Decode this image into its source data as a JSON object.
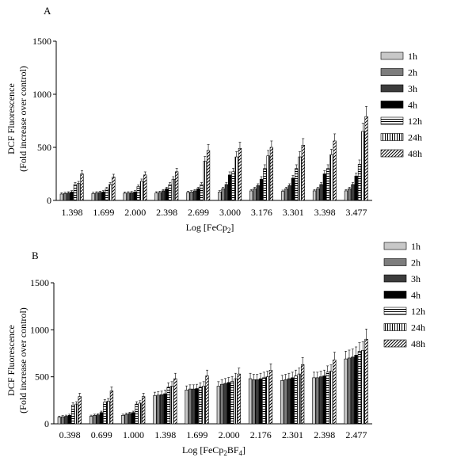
{
  "chart_data": [
    {
      "type": "bar",
      "panel_label": "A",
      "ylabel": "DCF Fluorescence",
      "ylabel2": "(Fold increase over control)",
      "xlabel_main": "Log [FeCp",
      "xlabel_sub": "2",
      "xlabel_end": "]",
      "ylim": [
        0,
        1500
      ],
      "yticks": [
        "0",
        "500",
        "1000",
        "1500"
      ],
      "categories": [
        "1.398",
        "1.699",
        "2.000",
        "2.398",
        "2.699",
        "3.000",
        "3.176",
        "3.301",
        "3.398",
        "3.477"
      ],
      "series": [
        {
          "name": "1h",
          "values": [
            60,
            65,
            68,
            70,
            75,
            80,
            90,
            85,
            90,
            90
          ]
        },
        {
          "name": "2h",
          "values": [
            65,
            70,
            70,
            75,
            80,
            110,
            110,
            110,
            110,
            110
          ]
        },
        {
          "name": "3h",
          "values": [
            70,
            75,
            72,
            90,
            90,
            150,
            140,
            140,
            150,
            150
          ]
        },
        {
          "name": "4h",
          "values": [
            80,
            80,
            80,
            110,
            110,
            240,
            200,
            210,
            250,
            230
          ]
        },
        {
          "name": "12h",
          "values": [
            150,
            110,
            130,
            150,
            150,
            270,
            300,
            300,
            300,
            340
          ]
        },
        {
          "name": "24h",
          "values": [
            160,
            150,
            180,
            200,
            370,
            410,
            420,
            410,
            430,
            650
          ]
        },
        {
          "name": "48h",
          "values": [
            250,
            220,
            240,
            270,
            470,
            490,
            500,
            520,
            560,
            790
          ]
        }
      ]
    },
    {
      "type": "bar",
      "panel_label": "B",
      "ylabel": "DCF Fluorescence",
      "ylabel2": "(Fold increase over control)",
      "xlabel_main": "Log [FeCp",
      "xlabel_sub": "2",
      "xlabel_mid": "BF",
      "xlabel_sub2": "4",
      "xlabel_end": "]",
      "ylim": [
        0,
        1500
      ],
      "yticks": [
        "0",
        "500",
        "1000",
        "1500"
      ],
      "categories": [
        "0.398",
        "0.699",
        "1.000",
        "1.398",
        "1.699",
        "2.000",
        "2.176",
        "2.301",
        "2.398",
        "2.477"
      ],
      "series": [
        {
          "name": "1h",
          "values": [
            70,
            80,
            90,
            300,
            360,
            400,
            480,
            460,
            490,
            690
          ]
        },
        {
          "name": "2h",
          "values": [
            75,
            90,
            100,
            305,
            370,
            420,
            470,
            470,
            490,
            700
          ]
        },
        {
          "name": "3h",
          "values": [
            80,
            95,
            110,
            310,
            370,
            430,
            470,
            480,
            500,
            710
          ]
        },
        {
          "name": "4h",
          "values": [
            90,
            120,
            120,
            320,
            375,
            440,
            480,
            490,
            510,
            730
          ]
        },
        {
          "name": "12h",
          "values": [
            200,
            230,
            210,
            390,
            390,
            450,
            490,
            510,
            550,
            770
          ]
        },
        {
          "name": "24h",
          "values": [
            210,
            240,
            220,
            400,
            400,
            480,
            500,
            530,
            560,
            780
          ]
        },
        {
          "name": "48h",
          "values": [
            290,
            350,
            290,
            480,
            510,
            530,
            570,
            630,
            680,
            900
          ]
        }
      ]
    }
  ]
}
